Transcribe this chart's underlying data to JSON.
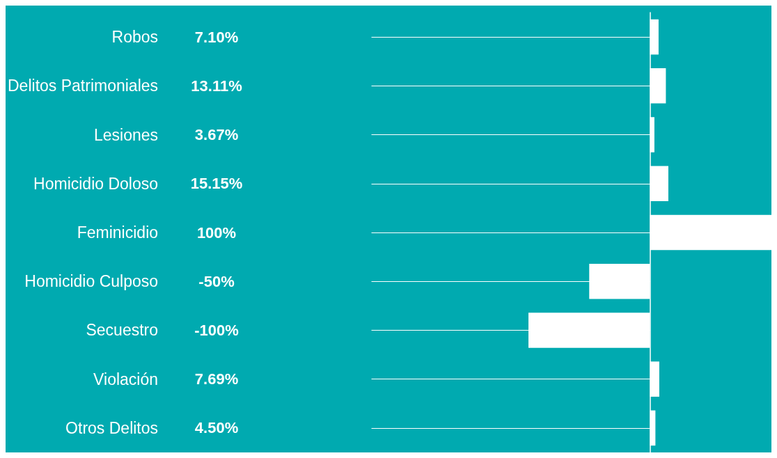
{
  "chart_data": {
    "type": "bar",
    "orientation": "horizontal",
    "categories": [
      "Robos",
      "Delitos Patrimoniales",
      "Lesiones",
      "Homicidio Doloso",
      "Feminicidio",
      "Homicidio Culposo",
      "Secuestro",
      "Violación",
      "Otros Delitos"
    ],
    "values": [
      7.1,
      13.11,
      3.67,
      15.15,
      100,
      -50,
      -100,
      7.69,
      4.5
    ],
    "value_labels": [
      "7.10%",
      "13.11%",
      "3.67%",
      "15.15%",
      "100%",
      "-50%",
      "-100%",
      "7.69%",
      "4.50%"
    ],
    "color": "#ffffff",
    "xlim": [
      -100,
      100
    ],
    "tick_labels": "y"
  }
}
